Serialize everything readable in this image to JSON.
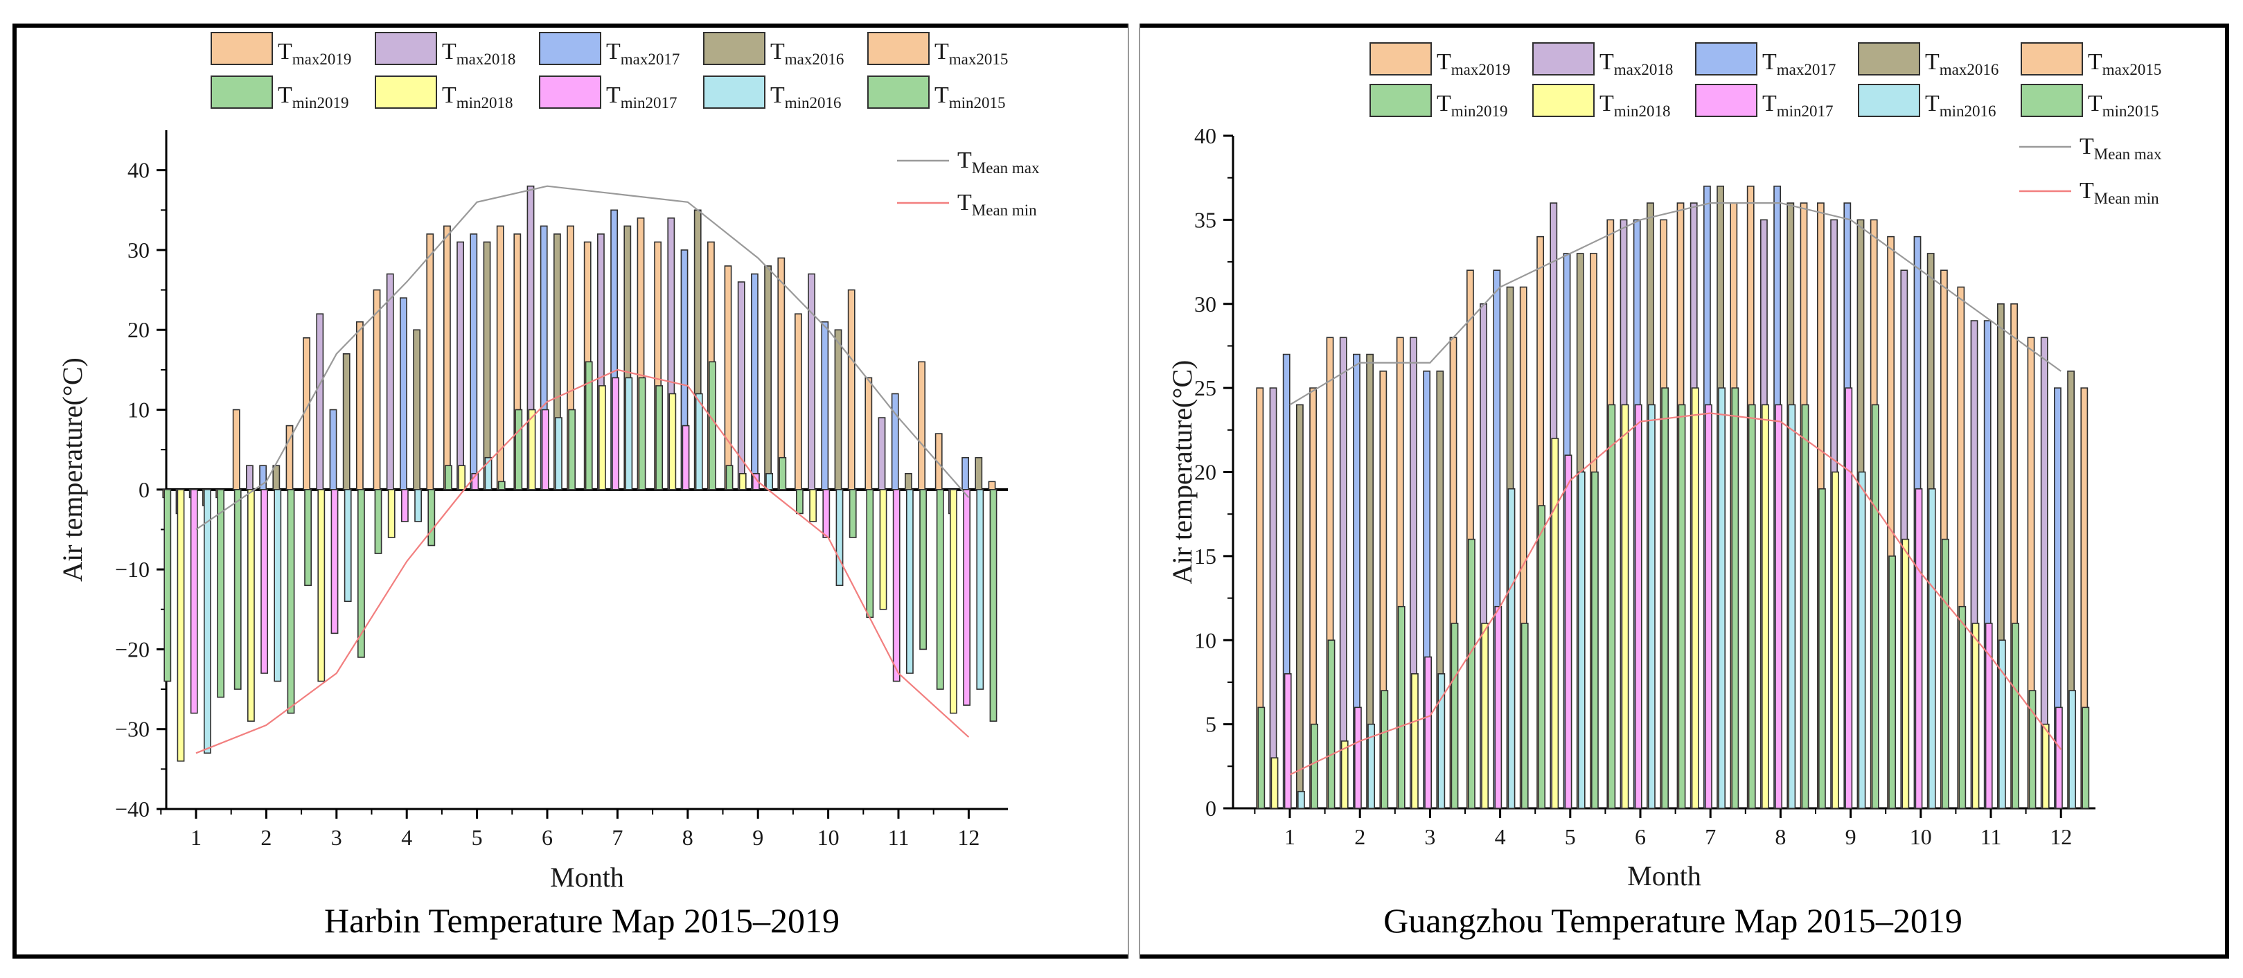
{
  "colors": {
    "Tmax2019": "#f7c89a",
    "Tmax2018": "#c9b3da",
    "Tmax2017": "#9ebaf2",
    "Tmax2016": "#b1ab88",
    "Tmax2015": "#f7c89a",
    "Tmin2019": "#9ed69a",
    "Tmin2018": "#ffff9c",
    "Tmin2017": "#fba7fb",
    "Tmin2016": "#b2e6ee",
    "Tmin2015": "#9ed69a",
    "edge": "#2f2f2f",
    "meanMax": "#9a9a9a",
    "meanMin": "#f27f7f"
  },
  "chart_data": [
    {
      "id": "harbin",
      "type": "bar",
      "title": "Harbin Temperature Map 2015–2019",
      "xlabel": "Month",
      "ylabel": "Air temperature(°C)",
      "ylim": [
        -40,
        45
      ],
      "yticks": [
        -40,
        -30,
        -20,
        -10,
        0,
        10,
        20,
        30,
        40
      ],
      "categories": [
        "1",
        "2",
        "3",
        "4",
        "5",
        "6",
        "7",
        "8",
        "9",
        "10",
        "11",
        "12"
      ],
      "legend_position": "top",
      "legend_bars": [
        {
          "key": "Tmax2019",
          "main": "T",
          "sub": "max2019"
        },
        {
          "key": "Tmax2018",
          "main": "T",
          "sub": "max2018"
        },
        {
          "key": "Tmax2017",
          "main": "T",
          "sub": "max2017"
        },
        {
          "key": "Tmax2016",
          "main": "T",
          "sub": "max2016"
        },
        {
          "key": "Tmax2015",
          "main": "T",
          "sub": "max2015"
        },
        {
          "key": "Tmin2019",
          "main": "T",
          "sub": "min2019"
        },
        {
          "key": "Tmin2018",
          "main": "T",
          "sub": "min2018"
        },
        {
          "key": "Tmin2017",
          "main": "T",
          "sub": "min2017"
        },
        {
          "key": "Tmin2016",
          "main": "T",
          "sub": "min2016"
        },
        {
          "key": "Tmin2015",
          "main": "T",
          "sub": "min2015"
        }
      ],
      "legend_lines": [
        {
          "key": "meanMax",
          "main": "T",
          "sub": "Mean max"
        },
        {
          "key": "meanMin",
          "main": "T",
          "sub": "Mean min"
        }
      ],
      "series": [
        {
          "name": "Tmax2019",
          "values": [
            -1,
            10,
            19,
            25,
            33,
            32,
            31,
            31,
            28,
            22,
            14,
            7
          ]
        },
        {
          "name": "Tmax2018",
          "values": [
            -3,
            3,
            22,
            27,
            31,
            38,
            32,
            34,
            26,
            27,
            9,
            -3
          ]
        },
        {
          "name": "Tmax2017",
          "values": [
            -1,
            3,
            10,
            24,
            32,
            33,
            35,
            30,
            27,
            21,
            12,
            4
          ]
        },
        {
          "name": "Tmax2016",
          "values": [
            -2,
            3,
            17,
            20,
            31,
            32,
            33,
            35,
            28,
            20,
            2,
            4
          ]
        },
        {
          "name": "Tmax2015",
          "values": [
            -1,
            8,
            21,
            32,
            33,
            33,
            34,
            31,
            29,
            25,
            16,
            1
          ]
        },
        {
          "name": "Tmin2019",
          "values": [
            -24,
            -25,
            -12,
            -8,
            3,
            10,
            16,
            13,
            3,
            -3,
            -16,
            -25
          ]
        },
        {
          "name": "Tmin2018",
          "values": [
            -34,
            -29,
            -24,
            -6,
            3,
            10,
            13,
            12,
            2,
            -4,
            -15,
            -28
          ]
        },
        {
          "name": "Tmin2017",
          "values": [
            -28,
            -23,
            -18,
            -4,
            2,
            10,
            14,
            8,
            2,
            -6,
            -24,
            -27
          ]
        },
        {
          "name": "Tmin2016",
          "values": [
            -33,
            -24,
            -14,
            -4,
            4,
            9,
            14,
            12,
            2,
            -12,
            -23,
            -25
          ]
        },
        {
          "name": "Tmin2015",
          "values": [
            -26,
            -28,
            -21,
            -7,
            1,
            10,
            14,
            16,
            4,
            -6,
            -20,
            -29
          ]
        }
      ],
      "meanMax": [
        -5,
        1,
        17,
        26,
        36,
        38,
        37,
        36,
        29,
        20,
        9,
        -1
      ],
      "meanMin": [
        -33,
        -29.5,
        -23,
        -9,
        2,
        11,
        15,
        13,
        1,
        -6,
        -23,
        -31
      ]
    },
    {
      "id": "guangzhou",
      "type": "bar",
      "title": "Guangzhou Temperature Map 2015–2019",
      "xlabel": "Month",
      "ylabel": "Air temperature(°C)",
      "ylim": [
        0,
        40
      ],
      "yticks": [
        0,
        5,
        10,
        15,
        20,
        25,
        30,
        35,
        40
      ],
      "categories": [
        "1",
        "2",
        "3",
        "4",
        "5",
        "6",
        "7",
        "8",
        "9",
        "10",
        "11",
        "12"
      ],
      "legend_position": "top",
      "legend_bars": [
        {
          "key": "Tmax2019",
          "main": "T",
          "sub": "max2019"
        },
        {
          "key": "Tmax2018",
          "main": "T",
          "sub": "max2018"
        },
        {
          "key": "Tmax2017",
          "main": "T",
          "sub": "max2017"
        },
        {
          "key": "Tmax2016",
          "main": "T",
          "sub": "max2016"
        },
        {
          "key": "Tmax2015",
          "main": "T",
          "sub": "max2015"
        },
        {
          "key": "Tmin2019",
          "main": "T",
          "sub": "min2019"
        },
        {
          "key": "Tmin2018",
          "main": "T",
          "sub": "min2018"
        },
        {
          "key": "Tmin2017",
          "main": "T",
          "sub": "min2017"
        },
        {
          "key": "Tmin2016",
          "main": "T",
          "sub": "min2016"
        },
        {
          "key": "Tmin2015",
          "main": "T",
          "sub": "min2015"
        }
      ],
      "legend_lines": [
        {
          "key": "meanMax",
          "main": "T",
          "sub": "Mean max"
        },
        {
          "key": "meanMin",
          "main": "T",
          "sub": "Mean min"
        }
      ],
      "series": [
        {
          "name": "Tmax2019",
          "values": [
            25,
            28,
            28,
            32,
            34,
            35,
            36,
            37,
            36,
            34,
            31,
            28
          ]
        },
        {
          "name": "Tmax2018",
          "values": [
            25,
            28,
            28,
            30,
            36,
            35,
            36,
            35,
            35,
            32,
            29,
            28
          ]
        },
        {
          "name": "Tmax2017",
          "values": [
            27,
            27,
            26,
            32,
            33,
            35,
            37,
            37,
            36,
            34,
            29,
            25
          ]
        },
        {
          "name": "Tmax2016",
          "values": [
            24,
            27,
            26,
            31,
            33,
            36,
            37,
            36,
            35,
            33,
            30,
            26
          ]
        },
        {
          "name": "Tmax2015",
          "values": [
            25,
            26,
            28,
            31,
            33,
            35,
            36,
            36,
            35,
            32,
            30,
            25
          ]
        },
        {
          "name": "Tmin2019",
          "values": [
            6,
            10,
            12,
            16,
            18,
            24,
            24,
            24,
            19,
            15,
            12,
            7
          ]
        },
        {
          "name": "Tmin2018",
          "values": [
            3,
            4,
            8,
            11,
            22,
            24,
            25,
            24,
            20,
            16,
            11,
            5
          ]
        },
        {
          "name": "Tmin2017",
          "values": [
            8,
            6,
            9,
            12,
            21,
            24,
            24,
            24,
            25,
            19,
            11,
            6
          ]
        },
        {
          "name": "Tmin2016",
          "values": [
            1,
            5,
            8,
            19,
            20,
            24,
            25,
            24,
            20,
            19,
            10,
            7
          ]
        },
        {
          "name": "Tmin2015",
          "values": [
            5,
            7,
            11,
            11,
            20,
            25,
            25,
            24,
            24,
            16,
            11,
            6
          ]
        }
      ],
      "meanMax": [
        24,
        26.5,
        26.5,
        31,
        33,
        35,
        36,
        36,
        35,
        32,
        29,
        26
      ],
      "meanMin": [
        2,
        4,
        5.5,
        12,
        19.5,
        23,
        23.5,
        23,
        20,
        14,
        9,
        3.5
      ]
    }
  ]
}
